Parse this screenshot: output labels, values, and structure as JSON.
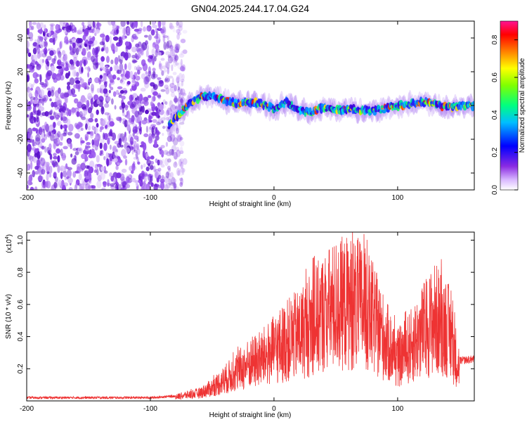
{
  "figure": {
    "title": "GN04.2025.244.17.04.G24"
  },
  "chart_data": [
    {
      "type": "heatmap",
      "name": "spectrogram",
      "xlabel": "Height of straight line (km)",
      "ylabel": "Frequency (Hz)",
      "xlim": [
        -200,
        162
      ],
      "ylim": [
        -50,
        50
      ],
      "xticks": [
        -200,
        -100,
        0,
        100
      ],
      "yticks": [
        -40,
        -20,
        0,
        20,
        40
      ],
      "colorbar": {
        "label": "Normalized spectral amplitude",
        "range": [
          0,
          0.9
        ],
        "ticks": [
          "0.0",
          "0.2",
          "0.4",
          "0.6",
          "0.8"
        ],
        "tick_values": [
          0,
          0.2,
          0.4,
          0.6,
          0.8
        ]
      },
      "noise_region_x": [
        -200,
        -80
      ],
      "signal_track": {
        "x": [
          -85,
          -80,
          -70,
          -60,
          -50,
          -40,
          -30,
          -20,
          -10,
          0,
          10,
          20,
          30,
          40,
          50,
          60,
          70,
          80,
          90,
          100,
          110,
          120,
          130,
          140,
          150,
          162
        ],
        "frequency": [
          -12,
          -8,
          0,
          5,
          6,
          3,
          1,
          2,
          1,
          -2,
          2,
          -3,
          -4,
          -1,
          -3,
          -2,
          -3,
          -3,
          -2,
          0,
          1,
          2,
          1,
          -1,
          0,
          0
        ]
      }
    },
    {
      "type": "line",
      "name": "snr",
      "xlabel": "Height of straight line (km)",
      "ylabel": "SNR (10 * v/v)",
      "y_multiplier_label": "(x10",
      "y_multiplier_exp": "4",
      "y_multiplier_close": ")",
      "xlim": [
        -200,
        162
      ],
      "ylim": [
        0,
        1.05
      ],
      "xticks": [
        -200,
        -100,
        0,
        100
      ],
      "yticks": [
        0.2,
        0.4,
        0.6,
        0.8,
        1.0
      ],
      "ytick_labels": [
        "0.2",
        "0.4",
        "0.6",
        "0.8",
        "1.0"
      ],
      "color": "#ee3333",
      "series": [
        {
          "name": "SNR envelope",
          "x": [
            -200,
            -150,
            -100,
            -80,
            -60,
            -50,
            -40,
            -30,
            -20,
            -10,
            0,
            10,
            20,
            30,
            40,
            50,
            60,
            70,
            80,
            90,
            100,
            110,
            120,
            130,
            140,
            145,
            150,
            162
          ],
          "y": [
            0.02,
            0.02,
            0.02,
            0.03,
            0.06,
            0.1,
            0.16,
            0.22,
            0.28,
            0.32,
            0.38,
            0.45,
            0.5,
            0.58,
            0.66,
            0.72,
            0.74,
            0.72,
            0.62,
            0.46,
            0.32,
            0.4,
            0.52,
            0.62,
            0.56,
            0.4,
            0.25,
            0.26
          ]
        }
      ]
    }
  ],
  "colors": {
    "line": "#ee3333",
    "noise": "#7a3ae0"
  }
}
